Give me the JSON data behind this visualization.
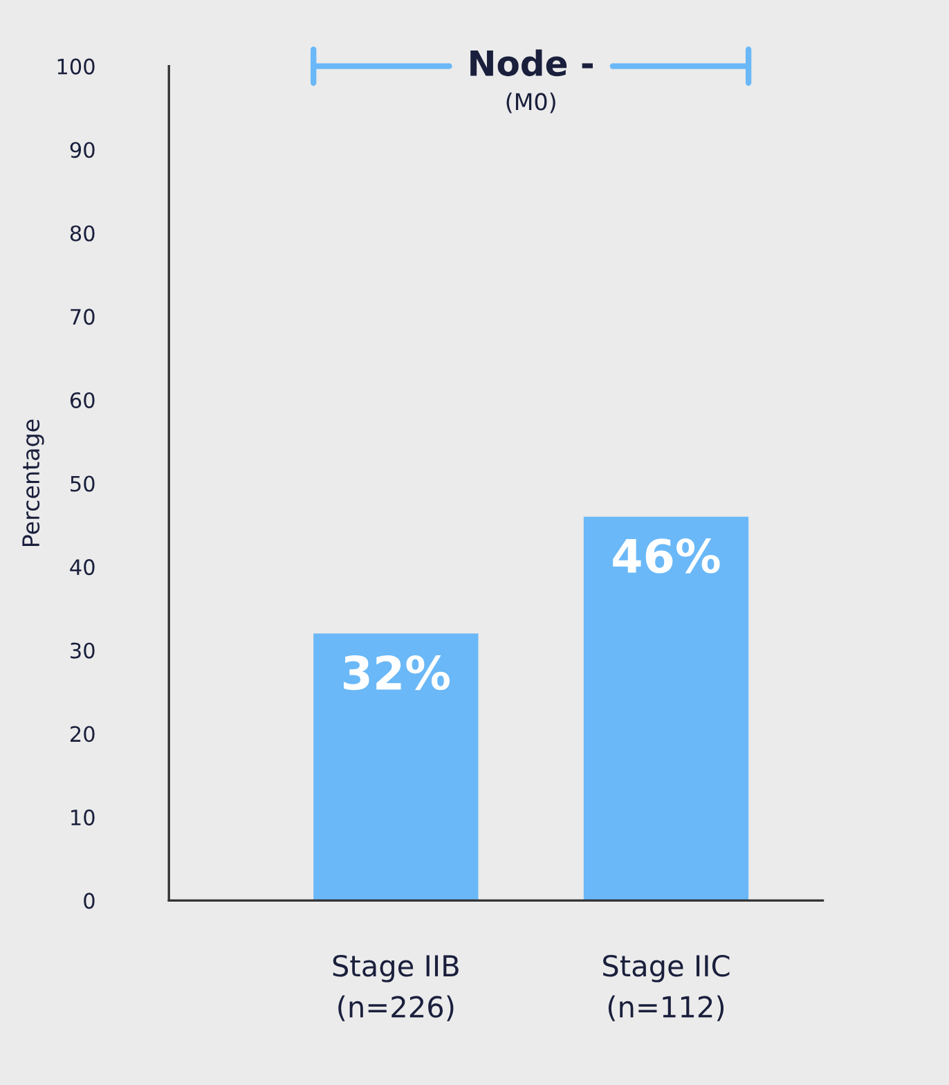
{
  "chart_data": {
    "type": "bar",
    "title": "Node -",
    "subtitle": "(M0)",
    "ylabel": "Percentage",
    "categories": [
      "Stage IIB\n(n=226)",
      "Stage IIC\n(n=112)"
    ],
    "values": [
      32,
      46
    ],
    "color": "#6ab8f7",
    "value_labels": [
      "32%",
      "46%"
    ],
    "ylim": [
      0,
      100
    ],
    "yticks": [
      0,
      10,
      20,
      30,
      40,
      50,
      60,
      70,
      80,
      90,
      100
    ],
    "grid": false,
    "legend": false
  }
}
